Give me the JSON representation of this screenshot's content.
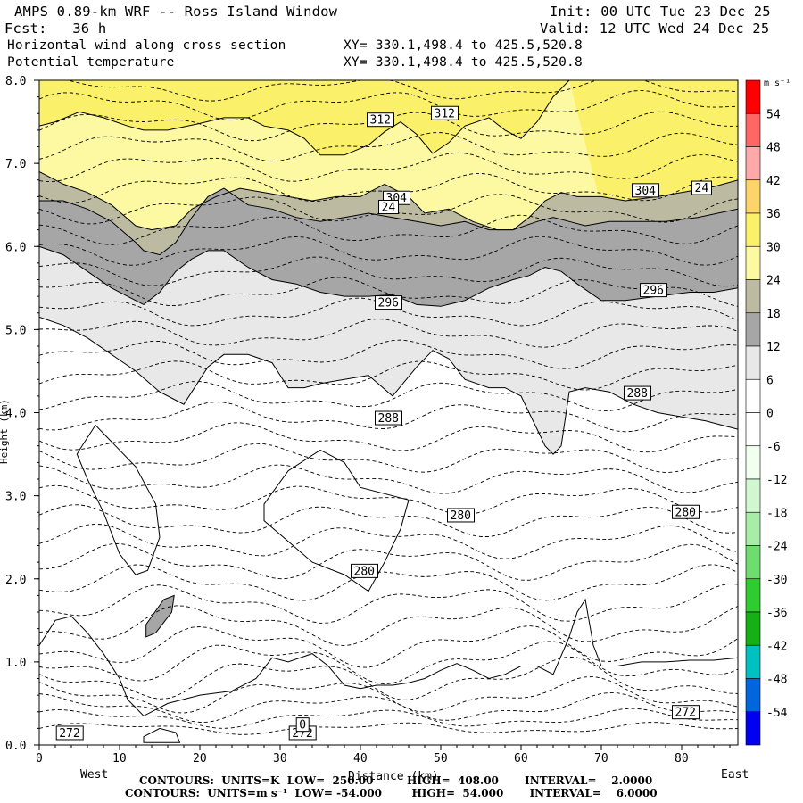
{
  "header": {
    "model": "AMPS 0.89-km WRF -- Ross Island Window",
    "init": "Init: 00 UTC Tue 23 Dec 25",
    "fcst": "Fcst:   36 h",
    "valid": "Valid: 12 UTC Wed 24 Dec 25",
    "field1": "Horizontal wind along cross section",
    "field1_xy": "XY= 330.1,498.4 to 425.5,520.8",
    "field2": "Potential temperature",
    "field2_xy": "XY= 330.1,498.4 to 425.5,520.8"
  },
  "footer": {
    "line1": "CONTOURS:  UNITS=K  LOW=  250.00         HIGH=  408.00       INTERVAL=    2.0000",
    "line2": "CONTOURS:  UNITS=m s⁻¹  LOW= -54.000        HIGH=  54.000       INTERVAL=    6.0000"
  },
  "colors": {
    "speed_12_18": "#a6a6a6",
    "speed_18_24": "#bdbaa2",
    "speed_24_30": "#fdf9a2",
    "speed_30_36": "#fbf06a",
    "speed_6_12": "#e8e8e8",
    "speed_neg6_6": "#ffffff"
  },
  "chart_data": {
    "type": "contour-cross-section",
    "xlabel": "Distance (km)",
    "x_left_label": "West",
    "x_right_label": "East",
    "ylabel": "Height (km)",
    "xlim": [
      0,
      87
    ],
    "ylim": [
      0,
      8
    ],
    "x_ticks": [
      "0",
      "10",
      "20",
      "30",
      "40",
      "50",
      "60",
      "70",
      "80"
    ],
    "x_tick_values": [
      0,
      10,
      20,
      30,
      40,
      50,
      60,
      70,
      80
    ],
    "y_ticks": [
      "0.0",
      "1.0",
      "2.0",
      "3.0",
      "4.0",
      "5.0",
      "6.0",
      "7.0",
      "8.0"
    ],
    "y_tick_values": [
      0,
      1,
      2,
      3,
      4,
      5,
      6,
      7,
      8
    ],
    "colorbar": {
      "units": "m s⁻¹",
      "labels": [
        "54",
        "48",
        "42",
        "36",
        "30",
        "24",
        "18",
        "12",
        "6",
        "0",
        "-6",
        "-12",
        "-18",
        "-24",
        "-30",
        "-36",
        "-42",
        "-48",
        "-54"
      ],
      "colors": [
        "#ff0000",
        "#ff6666",
        "#ffaaaa",
        "#fbd56a",
        "#fbf06a",
        "#fdf9a2",
        "#bdbaa2",
        "#a6a6a6",
        "#e8e8e8",
        "#ffffff",
        "#ffffff",
        "#f0fff0",
        "#d0f7d0",
        "#a8eca8",
        "#6fdc6f",
        "#2fcc2f",
        "#14b014",
        "#00c0c0",
        "#0066dd",
        "#0000ee"
      ]
    },
    "boundaries": [
      {
        "name": "30",
        "x": [
          0,
          2,
          5,
          8,
          11,
          13,
          16,
          20,
          23,
          26,
          28,
          31,
          33,
          35,
          38,
          41,
          43,
          45,
          47,
          49,
          51,
          53,
          56,
          58,
          60,
          62,
          64,
          66
        ],
        "y": [
          7.45,
          7.5,
          7.62,
          7.55,
          7.45,
          7.4,
          7.4,
          7.48,
          7.55,
          7.55,
          7.45,
          7.4,
          7.3,
          7.1,
          7.1,
          7.22,
          7.38,
          7.5,
          7.35,
          7.12,
          7.25,
          7.45,
          7.55,
          7.4,
          7.3,
          7.5,
          7.8,
          8.0
        ]
      },
      {
        "name": "24",
        "x": [
          0,
          3,
          6,
          9,
          12,
          14,
          17,
          19,
          22,
          25,
          28,
          31,
          34,
          37,
          40,
          43,
          46,
          48,
          51,
          54,
          57,
          59,
          61,
          63,
          65,
          67,
          70,
          73,
          77,
          80,
          84,
          87
        ],
        "y": [
          6.9,
          6.75,
          6.65,
          6.5,
          6.25,
          6.2,
          6.25,
          6.45,
          6.6,
          6.7,
          6.65,
          6.6,
          6.55,
          6.6,
          6.6,
          6.75,
          6.6,
          6.4,
          6.45,
          6.3,
          6.2,
          6.2,
          6.35,
          6.55,
          6.65,
          6.6,
          6.6,
          6.55,
          6.6,
          6.65,
          6.72,
          6.8
        ]
      },
      {
        "name": "18",
        "x": [
          0,
          3,
          6,
          9,
          12,
          13,
          15,
          17,
          19,
          21,
          23,
          26,
          29,
          32,
          35,
          38,
          41,
          44,
          47,
          50,
          53,
          56,
          59,
          62,
          64,
          66,
          68,
          71,
          74,
          78,
          82,
          87
        ],
        "y": [
          6.55,
          6.55,
          6.45,
          6.3,
          6.05,
          5.95,
          5.9,
          6.05,
          6.35,
          6.6,
          6.7,
          6.5,
          6.45,
          6.35,
          6.3,
          6.35,
          6.4,
          6.35,
          6.3,
          6.25,
          6.3,
          6.2,
          6.2,
          6.3,
          6.35,
          6.3,
          6.25,
          6.3,
          6.3,
          6.3,
          6.35,
          6.45
        ]
      },
      {
        "name": "12",
        "x": [
          0,
          3,
          6,
          9,
          12,
          13,
          15,
          17,
          19,
          21,
          23,
          26,
          29,
          32,
          35,
          38,
          41,
          44,
          47,
          50,
          53,
          56,
          59,
          61,
          63,
          65,
          67,
          70,
          73,
          77,
          81,
          84,
          87
        ],
        "y": [
          6.0,
          5.9,
          5.7,
          5.5,
          5.35,
          5.3,
          5.45,
          5.7,
          5.85,
          5.95,
          5.95,
          5.75,
          5.6,
          5.55,
          5.45,
          5.4,
          5.4,
          5.42,
          5.3,
          5.28,
          5.35,
          5.5,
          5.6,
          5.65,
          5.75,
          5.7,
          5.55,
          5.35,
          5.35,
          5.4,
          5.45,
          5.45,
          5.5
        ]
      },
      {
        "name": "6",
        "x": [
          0,
          3,
          6,
          9,
          12,
          15,
          17,
          18,
          19,
          21,
          23,
          26,
          29,
          30,
          31,
          33,
          35,
          38,
          41,
          44,
          47,
          49,
          51,
          53,
          56,
          58,
          60,
          61,
          62,
          63,
          64,
          65,
          66,
          68,
          71,
          74,
          77,
          80,
          83,
          85,
          87
        ],
        "y": [
          5.15,
          5.05,
          4.9,
          4.7,
          4.5,
          4.25,
          4.15,
          4.1,
          4.25,
          4.55,
          4.7,
          4.7,
          4.6,
          4.45,
          4.3,
          4.3,
          4.35,
          4.4,
          4.45,
          4.2,
          4.55,
          4.75,
          4.65,
          4.4,
          4.3,
          4.3,
          4.2,
          4.0,
          3.8,
          3.6,
          3.5,
          3.6,
          4.25,
          4.3,
          4.25,
          4.1,
          4.0,
          3.95,
          3.9,
          3.85,
          3.8
        ]
      },
      {
        "name": "0",
        "x": [
          0,
          2,
          4,
          6,
          8,
          10,
          11,
          13,
          16,
          20,
          24,
          27,
          29,
          31,
          34,
          36,
          38,
          40,
          42,
          44,
          46,
          48,
          50,
          52,
          54,
          56,
          58,
          60,
          62,
          64,
          66,
          67,
          68,
          69,
          70,
          72,
          75,
          78,
          81,
          84,
          87
        ],
        "y": [
          1.2,
          1.5,
          1.55,
          1.35,
          1.1,
          0.8,
          0.55,
          0.35,
          0.5,
          0.6,
          0.65,
          0.8,
          1.05,
          1.0,
          1.1,
          0.95,
          0.72,
          0.68,
          0.72,
          0.72,
          0.75,
          0.8,
          0.9,
          0.98,
          0.9,
          0.8,
          0.85,
          0.95,
          0.95,
          0.85,
          1.3,
          1.6,
          1.75,
          1.2,
          0.95,
          0.95,
          1.0,
          1.0,
          1.02,
          1.02,
          1.05
        ]
      }
    ],
    "theta_contours": [
      {
        "y0": 0.2,
        "amp": 0.05
      },
      {
        "y0": 0.32,
        "amp": 0.08
      },
      {
        "y0": 0.45,
        "amp": 0.12
      },
      {
        "y0": 0.6,
        "amp": 0.15
      },
      {
        "y0": 0.8,
        "amp": 0.18
      },
      {
        "y0": 1.0,
        "amp": 0.18
      },
      {
        "y0": 1.2,
        "amp": 0.18
      },
      {
        "y0": 1.45,
        "amp": 0.17
      },
      {
        "y0": 1.7,
        "amp": 0.16
      },
      {
        "y0": 1.95,
        "amp": 0.15
      },
      {
        "y0": 2.2,
        "amp": 0.15
      },
      {
        "y0": 2.45,
        "amp": 0.14
      },
      {
        "y0": 2.7,
        "amp": 0.13
      },
      {
        "y0": 2.95,
        "amp": 0.12
      },
      {
        "y0": 3.2,
        "amp": 0.12
      },
      {
        "y0": 3.45,
        "amp": 0.12
      },
      {
        "y0": 3.7,
        "amp": 0.12
      },
      {
        "y0": 3.95,
        "amp": 0.12
      },
      {
        "y0": 4.2,
        "amp": 0.12
      },
      {
        "y0": 4.45,
        "amp": 0.12
      },
      {
        "y0": 4.7,
        "amp": 0.12
      },
      {
        "y0": 4.95,
        "amp": 0.12
      },
      {
        "y0": 5.2,
        "amp": 0.12
      },
      {
        "y0": 5.45,
        "amp": 0.12
      },
      {
        "y0": 5.7,
        "amp": 0.12
      },
      {
        "y0": 5.95,
        "amp": 0.12
      },
      {
        "y0": 6.2,
        "amp": 0.12
      },
      {
        "y0": 6.45,
        "amp": 0.12
      },
      {
        "y0": 6.7,
        "amp": 0.12
      },
      {
        "y0": 6.95,
        "amp": 0.12
      },
      {
        "y0": 7.2,
        "amp": 0.12
      },
      {
        "y0": 7.45,
        "amp": 0.12
      },
      {
        "y0": 7.7,
        "amp": 0.12
      },
      {
        "y0": 7.9,
        "amp": 0.1
      }
    ],
    "contour_labels": [
      {
        "text": "312",
        "x": 42.5,
        "y": 7.52
      },
      {
        "text": "312",
        "x": 50.5,
        "y": 7.6
      },
      {
        "text": "304",
        "x": 44.5,
        "y": 6.58
      },
      {
        "text": "24",
        "x": 43.5,
        "y": 6.47
      },
      {
        "text": "304",
        "x": 75.5,
        "y": 6.67
      },
      {
        "text": "24",
        "x": 82.5,
        "y": 6.7
      },
      {
        "text": "296",
        "x": 43.5,
        "y": 5.32
      },
      {
        "text": "296",
        "x": 76.5,
        "y": 5.47
      },
      {
        "text": "288",
        "x": 43.5,
        "y": 3.93
      },
      {
        "text": "288",
        "x": 74.5,
        "y": 4.23
      },
      {
        "text": "280",
        "x": 52.5,
        "y": 2.76
      },
      {
        "text": "280",
        "x": 80.5,
        "y": 2.8
      },
      {
        "text": "280",
        "x": 40.5,
        "y": 2.09
      },
      {
        "text": "272",
        "x": 80.5,
        "y": 0.39
      },
      {
        "text": "272",
        "x": 3.8,
        "y": 0.14
      },
      {
        "text": "272",
        "x": 32.8,
        "y": 0.14
      },
      {
        "text": "0",
        "x": 32.8,
        "y": 0.24
      }
    ]
  }
}
